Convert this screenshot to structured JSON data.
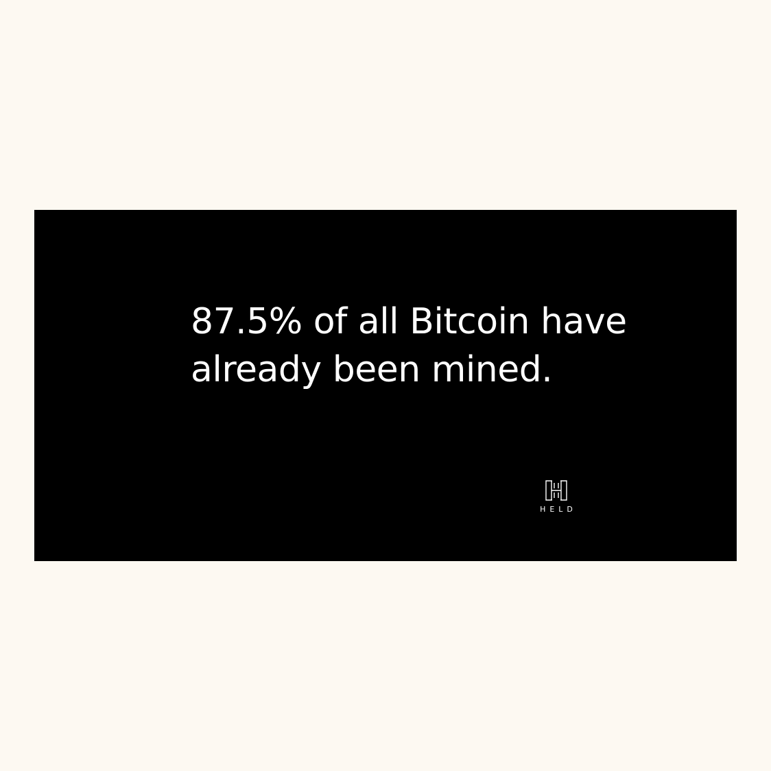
{
  "colors": {
    "background": "#fdf9f2",
    "card": "#000000",
    "text": "#ffffff"
  },
  "headline": {
    "line1": "87.5% of all Bitcoin have",
    "line2": "already been mined."
  },
  "logo": {
    "icon": "held-h-logo-icon",
    "wordmark": "HELD"
  }
}
